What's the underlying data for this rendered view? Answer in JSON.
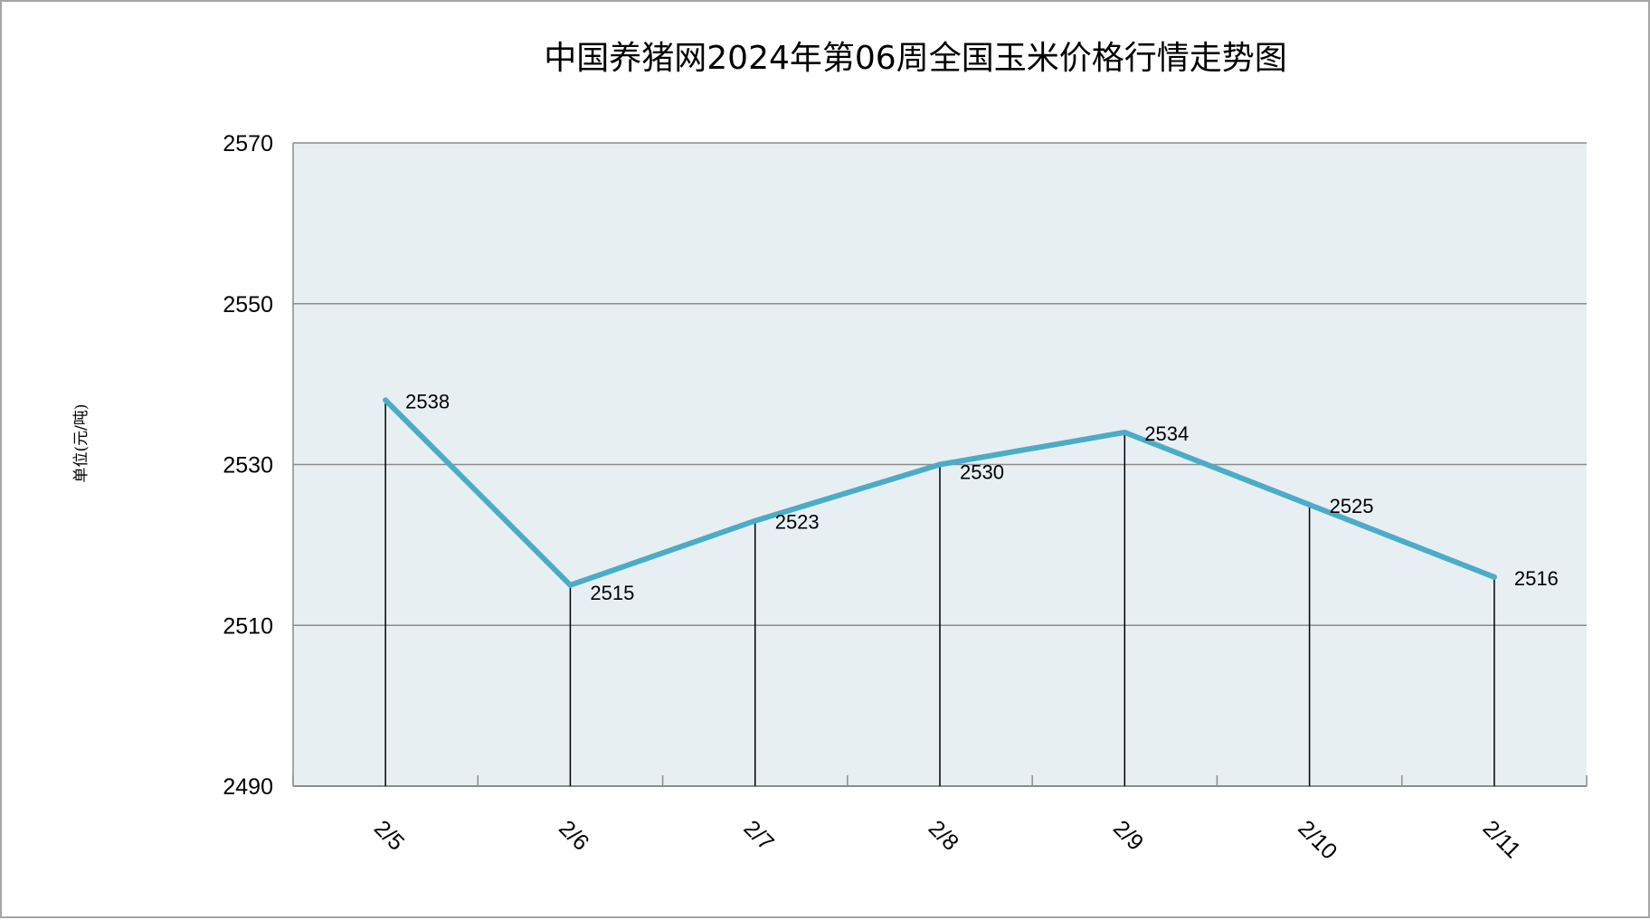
{
  "chart_data": {
    "type": "line",
    "title": "中国养猪网2024年第06周全国玉米价格行情走势图",
    "ylabel": "单位(元/吨)",
    "xlabel": "",
    "categories": [
      "2/5",
      "2/6",
      "2/7",
      "2/8",
      "2/9",
      "2/10",
      "2/11"
    ],
    "series": [
      {
        "values": [
          2538,
          2515,
          2523,
          2530,
          2534,
          2525,
          2516
        ]
      }
    ],
    "data_labels": [
      "2538",
      "2515",
      "2523",
      "2530",
      "2534",
      "2525",
      "2516"
    ],
    "ylim": [
      2490,
      2570
    ],
    "yticks": [
      2490,
      2510,
      2530,
      2550,
      2570
    ],
    "ytick_labels": [
      "2490",
      "2510",
      "2530",
      "2550",
      "2570"
    ],
    "grid": true,
    "drop_lines": true,
    "line_color": "#4bacc6",
    "plot_background": "#e8eff3",
    "legend": "none"
  }
}
